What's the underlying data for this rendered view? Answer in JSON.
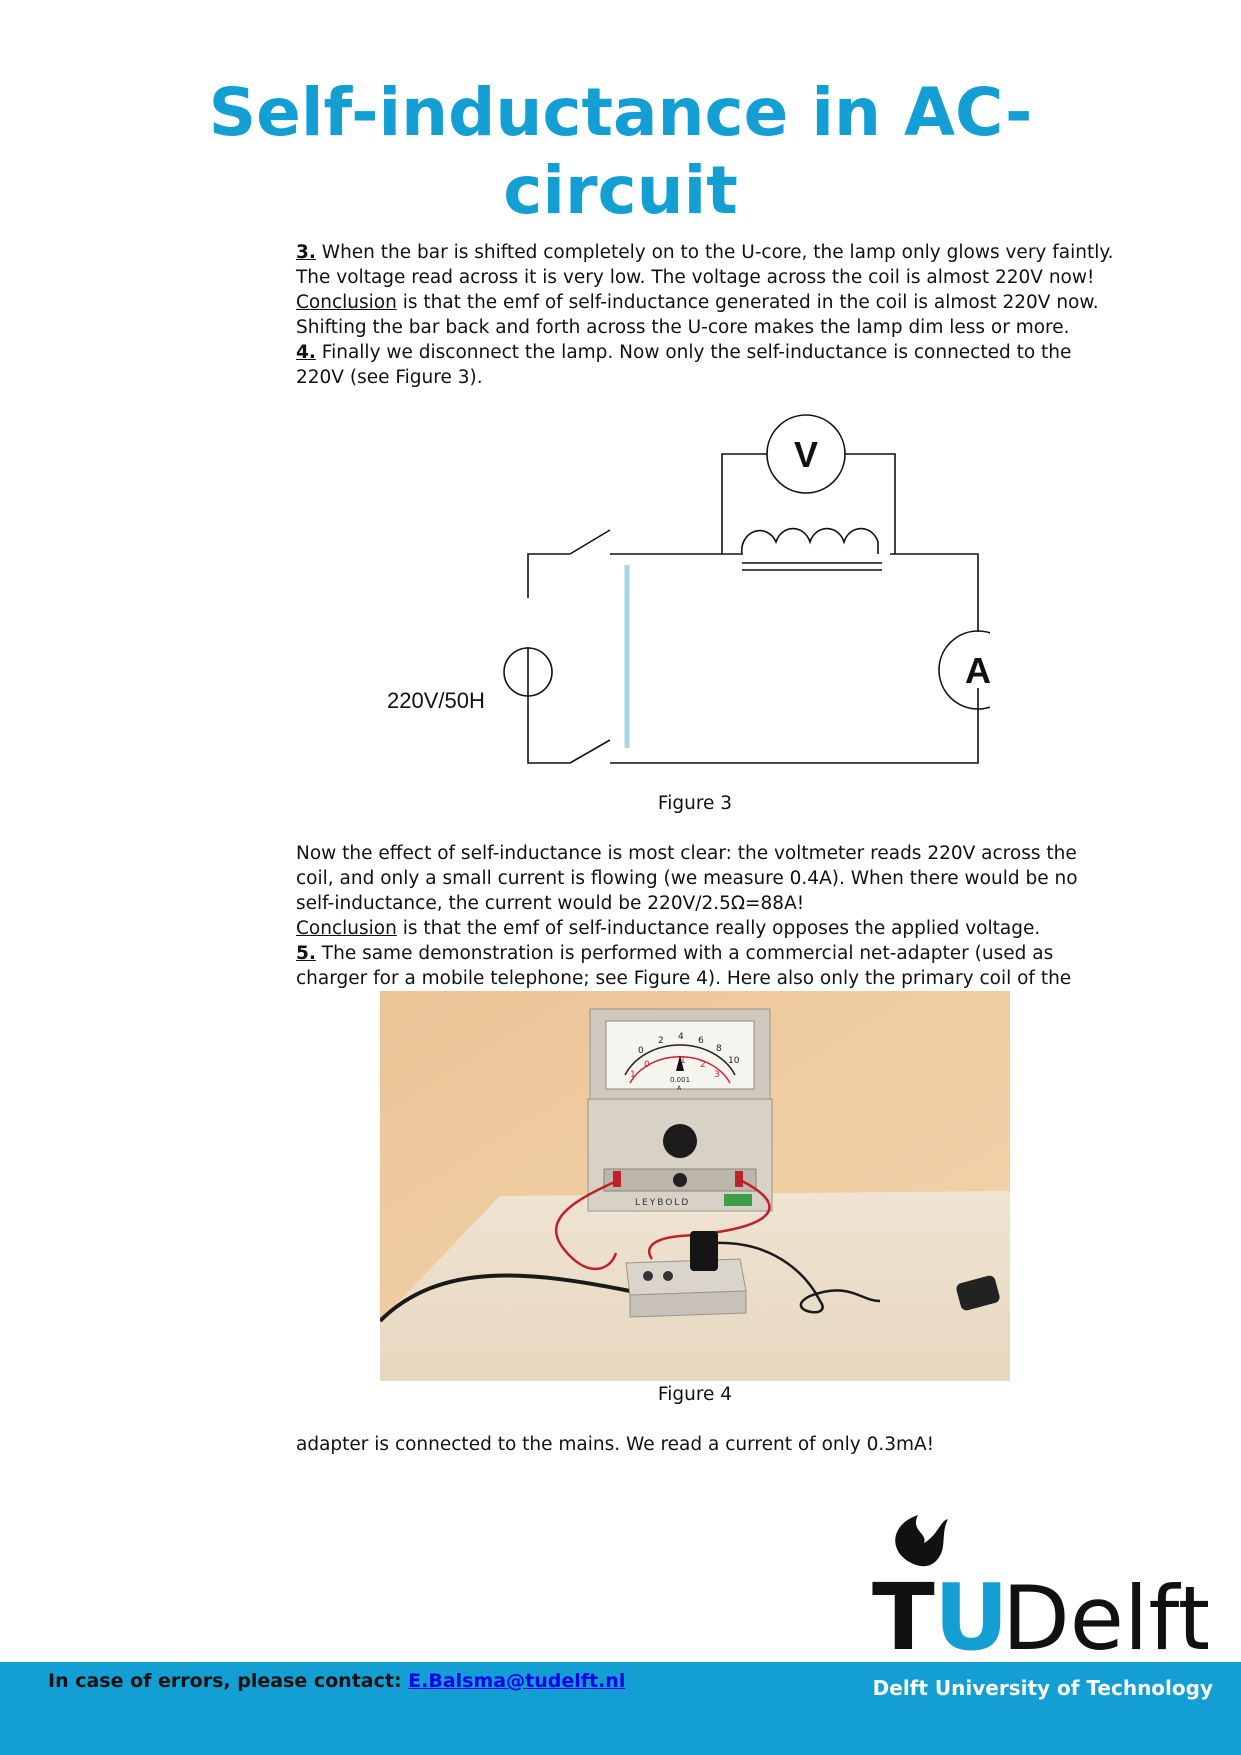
{
  "title": {
    "line1": "Self-inductance in AC-",
    "line2": "circuit"
  },
  "block1": {
    "p1_num": "3.",
    "p1_text": " When the bar is shifted completely on to the U-core, the lamp only glows very faintly. The voltage read across it is very low. The voltage across the coil is almost 220V now!",
    "p2_label": "Conclusion",
    "p2_text": " is that the emf of self-inductance generated in the coil is almost 220V now. Shifting the bar back and forth across the U-core makes the lamp dim less or more.",
    "p3_num": "4.",
    "p3_text": " Finally we disconnect the lamp. Now only the self-inductance is connected to the 220V (see Figure 3)."
  },
  "figure3": {
    "voltmeter_label": "V",
    "ammeter_label": "A",
    "source_label": "220V/50H",
    "caption": "Figure 3"
  },
  "block2": {
    "p1_text": "Now the effect of self-inductance is most clear: the voltmeter reads 220V across the coil, and only a small current is flowing (we measure 0.4A). When there would be no self-inductance, the current would be 220V/2.5Ω=88A!",
    "p2_label": "Conclusion",
    "p2_text": " is that the emf of self-inductance really opposes the applied voltage.",
    "p3_num": "5.",
    "p3_text": " The same demonstration is performed with a commercial net-adapter (used as charger for a mobile telephone; see Figure 4). Here also only the primary coil of the"
  },
  "figure4": {
    "caption": "Figure 4",
    "meter_scale": [
      "0",
      "2",
      "4",
      "6",
      "8",
      "10"
    ],
    "meter_red_scale": [
      "1",
      "0",
      "1",
      "2",
      "3"
    ],
    "meter_range": "0.001",
    "meter_unit": "A",
    "meter_brand": "LEYBOLD"
  },
  "block3": {
    "p1_text": "adapter is connected to the mains. We read a current of only 0.3mA!"
  },
  "logo": {
    "part1": "T",
    "part2": "U",
    "part3": "Delft"
  },
  "footer": {
    "contact_label": "In case of errors, please contact: ",
    "contact_email": "E.Balsma@tudelft.nl",
    "university": "Delft University of Technology"
  },
  "colors": {
    "accent": "#139fd4",
    "footer_bg": "#139fd4",
    "logo_dark": "#111111"
  }
}
